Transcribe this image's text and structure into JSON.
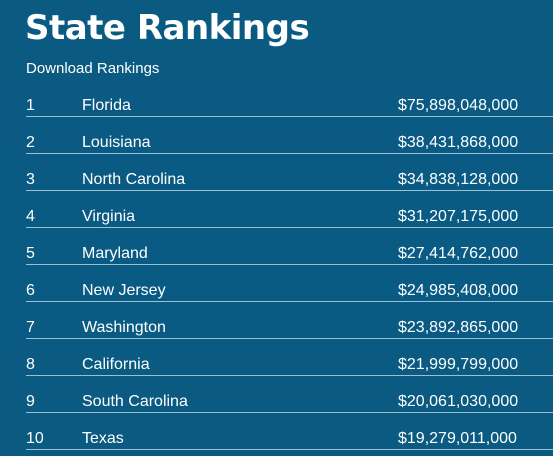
{
  "header": {
    "title": "State Rankings",
    "download_label": "Download Rankings"
  },
  "rankings": [
    {
      "rank": "1",
      "state": "Florida",
      "value": "$75,898,048,000"
    },
    {
      "rank": "2",
      "state": "Louisiana",
      "value": "$38,431,868,000"
    },
    {
      "rank": "3",
      "state": "North Carolina",
      "value": "$34,838,128,000"
    },
    {
      "rank": "4",
      "state": "Virginia",
      "value": "$31,207,175,000"
    },
    {
      "rank": "5",
      "state": "Maryland",
      "value": "$27,414,762,000"
    },
    {
      "rank": "6",
      "state": "New Jersey",
      "value": "$24,985,408,000"
    },
    {
      "rank": "7",
      "state": "Washington",
      "value": "$23,892,865,000"
    },
    {
      "rank": "8",
      "state": "California",
      "value": "$21,999,799,000"
    },
    {
      "rank": "9",
      "state": "South Carolina",
      "value": "$20,061,030,000"
    },
    {
      "rank": "10",
      "state": "Texas",
      "value": "$19,279,011,000"
    }
  ],
  "colors": {
    "background": "#0a5a82",
    "text": "#ffffff",
    "divider": "#cde1ee"
  }
}
